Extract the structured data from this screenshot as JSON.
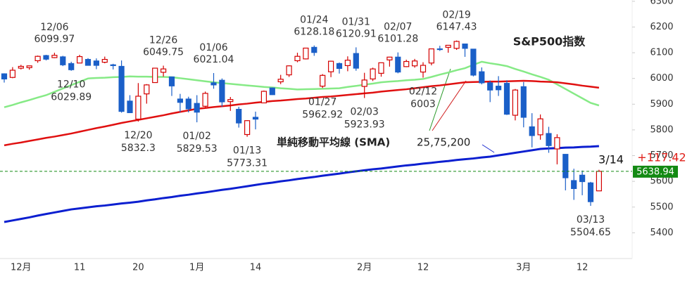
{
  "chart_data": {
    "type": "candlestick",
    "title": "S&P500指数",
    "sma_label": "単純移動平均線 (SMA)",
    "sma_periods": "25,75,200",
    "categories": [
      null,
      null,
      "12月",
      null,
      null,
      null,
      null,
      null,
      null,
      "11",
      null,
      null,
      null,
      null,
      null,
      null,
      "20",
      null,
      null,
      null,
      null,
      null,
      null,
      "1月",
      null,
      null,
      null,
      null,
      null,
      null,
      "14",
      null,
      null,
      null,
      null,
      null,
      null,
      null,
      null,
      null,
      null,
      null,
      null,
      "2月",
      null,
      null,
      null,
      null,
      null,
      null,
      "12",
      null,
      null,
      null,
      null,
      null,
      null,
      null,
      null,
      null,
      null,
      null,
      "3月",
      null,
      null,
      null,
      null,
      null,
      null,
      "12",
      null,
      null
    ],
    "open": [
      6018,
      6004,
      6040,
      6042,
      6069,
      6089,
      6081,
      6084,
      6058,
      6060,
      6074,
      6068,
      6063,
      6053,
      6047,
      5912,
      5842,
      5940,
      5984,
      6024,
      6006,
      5920,
      5920,
      5903,
      5892,
      5983,
      5993,
      5910,
      5880,
      5782,
      5849,
      5905,
      5963,
      5987,
      6014,
      6069,
      6076,
      6121,
      5970,
      6026,
      6058,
      6050,
      6097,
      5969,
      5998,
      6020,
      6072,
      6083,
      6046,
      6049,
      6025,
      6060,
      6115,
      6121,
      6117,
      6134,
      6114,
      6026,
      5983,
      5970,
      5981,
      5857,
      5968,
      5812,
      5781,
      5786,
      5726,
      5705,
      5603,
      5624,
      5594,
      5563
    ],
    "high": [
      6020,
      6044,
      6053,
      6050,
      6089,
      6092,
      6099.97,
      6088,
      6065,
      6092,
      6079,
      6078,
      6085,
      6057,
      6070,
      5935,
      5982,
      5978,
      6040,
      6049.75,
      6006,
      5940,
      5929,
      5935,
      5949,
      6021.04,
      6000,
      5928,
      5890,
      5838,
      5871,
      5953,
      5965,
      6014,
      6051,
      6100,
      6118,
      6128.18,
      6017,
      6069,
      6062,
      6086,
      6120.91,
      6022,
      6042,
      6062,
      6084,
      6101.28,
      6073,
      6076,
      6063,
      6116,
      6127,
      6129,
      6147.43,
      6134,
      6114,
      6043,
      5992,
      6009,
      5993,
      5959,
      5986,
      5865,
      5860,
      5812,
      5783,
      5706,
      5649,
      5642,
      5598,
      5645
    ],
    "low": [
      5984,
      6001,
      6035,
      6034,
      6061,
      6070,
      6079,
      6048,
      6029.89,
      6060,
      6051,
      6036,
      6059,
      6035,
      5867,
      5866,
      5832.3,
      5902,
      5983,
      6007,
      5932,
      5869,
      5868,
      5829.53,
      5888,
      5960,
      5890,
      5874,
      5809,
      5773.31,
      5802,
      5905,
      5936,
      5978,
      6006,
      6063,
      6074,
      6088,
      5962.92,
      6005,
      6019,
      6028,
      6030,
      5923.93,
      5990,
      6007,
      6046,
      6020,
      6044,
      6042,
      6003,
      6051,
      6107,
      6100,
      6111,
      6084,
      6008,
      5977,
      5908,
      5932,
      5858,
      5837,
      5810,
      5732,
      5762,
      5711,
      5666,
      5565,
      5528,
      5546,
      5504.65,
      5563
    ],
    "close": [
      5998,
      6032,
      6047,
      6049,
      6086,
      6075,
      6090,
      6053,
      6034,
      6085,
      6051,
      6051,
      6074,
      6050,
      5872,
      5867,
      5931,
      5975,
      6040,
      6037,
      5971,
      5907,
      5882,
      5869,
      5942,
      5975,
      5909,
      5918,
      5827,
      5836,
      5842,
      5950,
      5937,
      5997,
      6049,
      6086,
      6118,
      6101,
      6012,
      6067,
      6039,
      6071,
      6040,
      5994,
      6037,
      6061,
      6083,
      6025,
      6066,
      6068,
      6051,
      6115,
      6114,
      6129,
      6144,
      6117,
      6013,
      5983,
      5955,
      5956,
      5861,
      5955,
      5849,
      5778,
      5843,
      5739,
      5770,
      5614,
      5572,
      5599,
      5521,
      5638.94
    ],
    "up_color": "#d40000",
    "down_color": "#1a5fc8",
    "series": [
      {
        "color": "#86ea86",
        "values": [
          5888,
          5897,
          5907,
          5916,
          5926,
          5935,
          5948,
          5961,
          5974,
          5987,
          6000,
          6002,
          6003,
          6005,
          6006,
          6008,
          6007,
          6007,
          6006,
          6006,
          6005,
          6001,
          5997,
          5993,
          5989,
          5985,
          5982,
          5979,
          5976,
          5973,
          5970,
          5967,
          5965,
          5962,
          5960,
          5957,
          5958,
          5959,
          5960,
          5961,
          5962,
          5967,
          5971,
          5976,
          5980,
          5985,
          5988,
          5990,
          5993,
          5995,
          5998,
          6006,
          6015,
          6023,
          6032,
          6040,
          6053,
          6065,
          6059,
          6054,
          6048,
          6037,
          6027,
          6016,
          6006,
          5995,
          5977,
          5959,
          5941,
          5923,
          5905,
          5895
        ]
      },
      {
        "color": "#e01010",
        "values": [
          5740,
          5746,
          5751,
          5757,
          5763,
          5769,
          5774,
          5780,
          5786,
          5793,
          5800,
          5807,
          5813,
          5820,
          5827,
          5833,
          5839,
          5845,
          5851,
          5857,
          5864,
          5870,
          5876,
          5882,
          5885,
          5889,
          5892,
          5895,
          5899,
          5902,
          5906,
          5909,
          5912,
          5914,
          5917,
          5920,
          5922,
          5925,
          5928,
          5930,
          5933,
          5936,
          5939,
          5942,
          5945,
          5949,
          5952,
          5955,
          5958,
          5962,
          5966,
          5970,
          5973,
          5977,
          5981,
          5985,
          5986,
          5987,
          5988,
          5988,
          5989,
          5990,
          5991,
          5990,
          5988,
          5987,
          5985,
          5981,
          5977,
          5972,
          5968,
          5964
        ]
      },
      {
        "color": "#0c1fd0",
        "values": [
          5442,
          5448,
          5454,
          5460,
          5467,
          5473,
          5479,
          5485,
          5491,
          5495,
          5499,
          5503,
          5506,
          5510,
          5514,
          5517,
          5521,
          5526,
          5530,
          5535,
          5539,
          5544,
          5548,
          5553,
          5557,
          5562,
          5567,
          5571,
          5576,
          5581,
          5586,
          5591,
          5595,
          5600,
          5604,
          5609,
          5613,
          5617,
          5622,
          5626,
          5630,
          5635,
          5639,
          5643,
          5647,
          5650,
          5654,
          5658,
          5662,
          5665,
          5669,
          5672,
          5676,
          5679,
          5683,
          5686,
          5689,
          5693,
          5696,
          5701,
          5706,
          5711,
          5716,
          5721,
          5726,
          5728,
          5729,
          5731,
          5732,
          5734,
          5735,
          5737
        ]
      }
    ],
    "annotations": [
      {
        "label": "12/06",
        "value": 6099.97
      },
      {
        "label": "12/10",
        "value": 6029.89
      },
      {
        "label": "12/26",
        "value": 6049.75
      },
      {
        "label": "12/20",
        "value": 5832.3
      },
      {
        "label": "01/06",
        "value": 6021.04
      },
      {
        "label": "01/02",
        "value": 5829.53
      },
      {
        "label": "01/13",
        "value": 5773.31
      },
      {
        "label": "01/24",
        "value": 6128.18
      },
      {
        "label": "01/31",
        "value": 6120.91
      },
      {
        "label": "01/27",
        "value": 5962.92
      },
      {
        "label": "02/03",
        "value": 5923.93
      },
      {
        "label": "02/07",
        "value": 6101.28
      },
      {
        "label": "02/12",
        "value": 6003
      },
      {
        "label": "02/19",
        "value": 6147.43
      },
      {
        "label": "03/13",
        "value": 5504.65
      }
    ],
    "last_date": "3/14",
    "change": {
      "value": 117.42,
      "label": "+117.42"
    },
    "last_color": "#138a13",
    "ylim": [
      5300,
      6305
    ],
    "yticks": [
      5400,
      5500,
      5600,
      5700,
      5800,
      5900,
      6000,
      6100,
      6200,
      6300
    ]
  }
}
